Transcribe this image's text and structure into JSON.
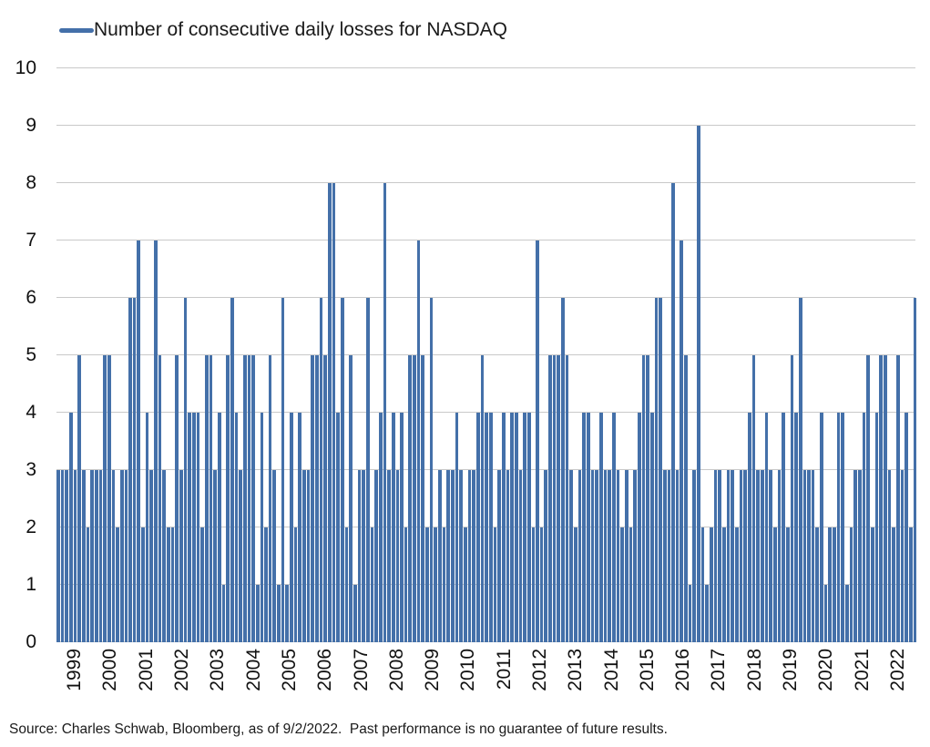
{
  "legend": {
    "label": "Number of consecutive daily losses for NASDAQ"
  },
  "source_note": "Source: Charles Schwab, Bloomberg, as of 9/2/2022.  Past performance is no guarantee of future results.",
  "colors": {
    "bar": "#4470A9",
    "legend_marker": "#4470A9",
    "gridline": "#C9C9C9",
    "text": "#1A1A1A"
  },
  "chart_data": {
    "type": "bar",
    "title": "Number of consecutive daily losses for NASDAQ",
    "subtitle": "",
    "xlabel": "",
    "ylabel": "",
    "ylim": [
      0,
      10
    ],
    "yticks": [
      0,
      1,
      2,
      3,
      4,
      5,
      6,
      7,
      8,
      9,
      10
    ],
    "grid": "horizontal gridlines on, integer steps",
    "legend_position": "top-left",
    "x_unit": "each bar = one losing streak; x labels mark calendar years",
    "years": [
      {
        "year": "1999",
        "values": [
          3,
          3,
          3,
          4,
          3,
          5,
          3,
          2,
          3,
          3
        ]
      },
      {
        "year": "2000",
        "values": [
          3,
          5,
          5,
          3,
          2,
          3,
          3,
          6,
          6
        ]
      },
      {
        "year": "2001",
        "values": [
          7,
          2,
          4,
          3,
          7,
          5,
          3,
          2
        ]
      },
      {
        "year": "2002",
        "values": [
          2,
          5,
          3,
          6,
          4,
          4,
          4,
          2
        ]
      },
      {
        "year": "2003",
        "values": [
          5,
          5,
          3,
          4,
          1,
          5,
          6,
          4,
          3
        ]
      },
      {
        "year": "2004",
        "values": [
          5,
          5,
          5,
          1,
          4,
          2,
          5,
          3,
          1
        ]
      },
      {
        "year": "2005",
        "values": [
          6,
          1,
          4,
          2,
          4,
          3,
          3,
          5
        ]
      },
      {
        "year": "2006",
        "values": [
          5,
          6,
          5,
          8,
          8,
          4,
          6,
          2
        ]
      },
      {
        "year": "2007",
        "values": [
          5,
          1,
          3,
          3,
          6,
          2,
          3,
          4
        ]
      },
      {
        "year": "2008",
        "values": [
          8,
          3,
          4,
          3,
          4,
          2,
          5,
          5,
          7,
          5
        ]
      },
      {
        "year": "2009",
        "values": [
          2,
          6,
          2,
          3,
          2,
          3,
          3,
          4,
          3
        ]
      },
      {
        "year": "2010",
        "values": [
          2,
          3,
          3,
          4,
          5,
          4,
          4,
          2,
          3
        ]
      },
      {
        "year": "2011",
        "values": [
          4,
          3,
          4,
          4,
          3,
          4,
          4,
          2
        ]
      },
      {
        "year": "2012",
        "values": [
          7,
          2,
          3,
          5,
          5,
          5,
          6
        ]
      },
      {
        "year": "2013",
        "values": [
          5,
          3,
          2,
          3,
          4,
          4,
          3
        ]
      },
      {
        "year": "2014",
        "values": [
          3,
          4,
          3,
          3,
          4,
          3,
          2,
          3,
          2
        ]
      },
      {
        "year": "2015",
        "values": [
          3,
          4,
          5,
          5,
          4,
          6,
          6,
          3
        ]
      },
      {
        "year": "2016",
        "values": [
          3,
          8,
          3,
          7,
          5,
          1,
          3,
          9
        ]
      },
      {
        "year": "2017",
        "values": [
          2,
          1,
          2,
          3,
          3,
          2,
          3,
          3,
          2,
          3
        ]
      },
      {
        "year": "2018",
        "values": [
          3,
          4,
          5,
          3,
          3,
          4,
          3,
          2
        ]
      },
      {
        "year": "2019",
        "values": [
          3,
          4,
          2,
          5,
          4,
          6,
          3,
          3
        ]
      },
      {
        "year": "2020",
        "values": [
          3,
          2,
          4,
          1,
          2,
          2,
          4,
          4,
          1
        ]
      },
      {
        "year": "2021",
        "values": [
          2,
          3,
          3,
          4,
          5,
          2,
          4
        ]
      },
      {
        "year": "2022",
        "values": [
          5,
          5,
          3,
          2,
          5,
          3,
          4,
          2,
          6
        ]
      }
    ]
  }
}
